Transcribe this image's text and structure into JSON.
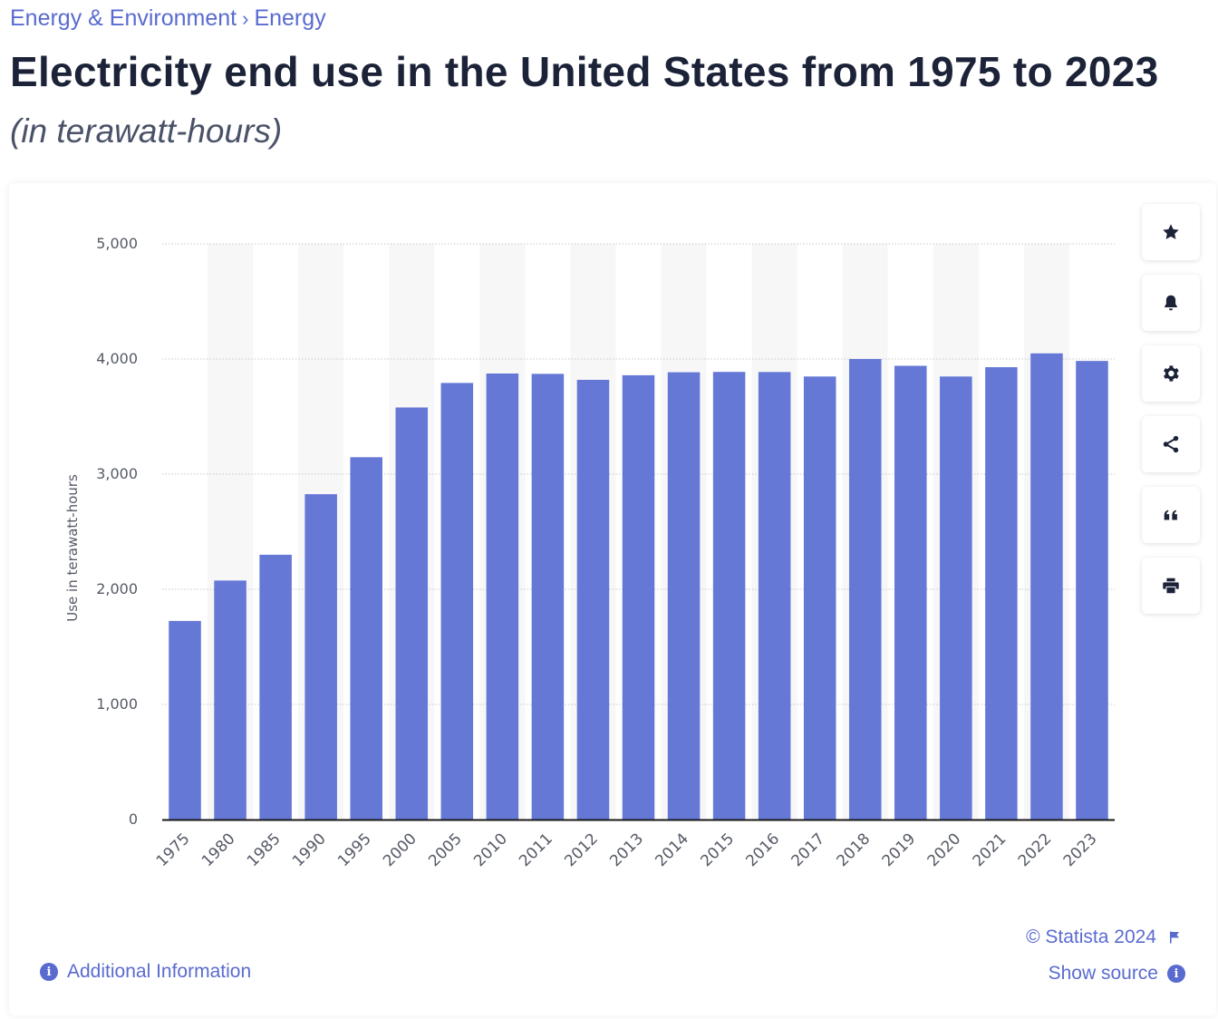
{
  "breadcrumb": {
    "items": [
      "Energy & Environment",
      "Energy"
    ],
    "separator": "›"
  },
  "title": "Electricity end use in the United States from 1975 to 2023",
  "subtitle": "(in terawatt-hours)",
  "colors": {
    "bar": "#6578d6",
    "accent": "#5a6bd0",
    "band": "#f7f7f7",
    "grid": "#c8c8c8",
    "axis": "#1a1a1a",
    "tick_text": "#555a66"
  },
  "toolbar": {
    "items": [
      {
        "name": "favorite",
        "icon": "star-icon"
      },
      {
        "name": "notification",
        "icon": "bell-icon"
      },
      {
        "name": "settings",
        "icon": "gear-icon"
      },
      {
        "name": "share",
        "icon": "share-icon"
      },
      {
        "name": "cite",
        "icon": "quote-icon"
      },
      {
        "name": "print",
        "icon": "printer-icon"
      }
    ]
  },
  "footer": {
    "additional_info": "Additional Information",
    "copyright": "© Statista 2024",
    "show_source": "Show source"
  },
  "chart_data": {
    "type": "bar",
    "title": "",
    "xlabel": "",
    "ylabel": "Use in terawatt-hours",
    "ylim": [
      0,
      5000
    ],
    "yticks": [
      0,
      1000,
      2000,
      3000,
      4000,
      5000
    ],
    "ytick_labels": [
      "0",
      "1,000",
      "2,000",
      "3,000",
      "4,000",
      "5,000"
    ],
    "grid": true,
    "categories": [
      "1975",
      "1980",
      "1985",
      "1990",
      "1995",
      "2000",
      "2005",
      "2010",
      "2011",
      "2012",
      "2013",
      "2014",
      "2015",
      "2016",
      "2017",
      "2018",
      "2019",
      "2020",
      "2021",
      "2022",
      "2023"
    ],
    "values": [
      1725,
      2076,
      2300,
      2826,
      3147,
      3579,
      3792,
      3874,
      3871,
      3819,
      3859,
      3885,
      3888,
      3887,
      3848,
      4000,
      3941,
      3848,
      3929,
      4049,
      3983
    ]
  }
}
